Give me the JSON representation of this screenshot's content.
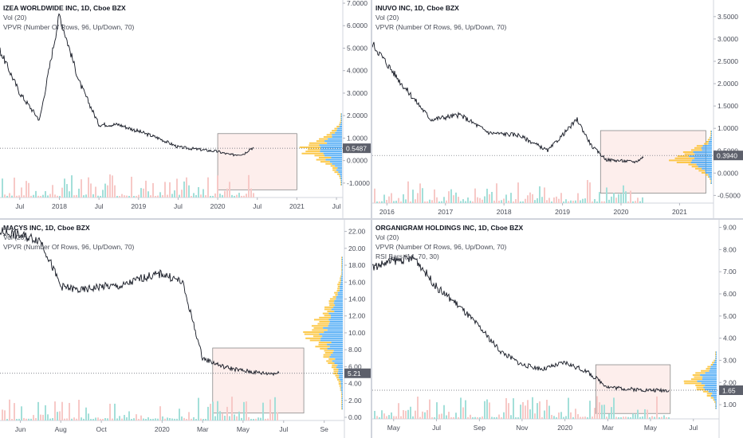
{
  "colors": {
    "price_line": "#131722",
    "vol_up": "#a3dfd9",
    "vol_down": "#f7c9c7",
    "vp_up": "#42a5f5",
    "vp_down": "#fbc02d",
    "box_fill": "#fce8e6",
    "box_stroke": "#8a8a8a",
    "badge": "#5d606b",
    "axis_text": "#4a4e59"
  },
  "panels": [
    {
      "title": "IZEA WORLDWIDE INC, 1D, Cboe BZX",
      "indicators": [
        "Vol (20)",
        "VPVR (Number Of Rows, 96, Up/Down, 70)"
      ],
      "price_label": "0.5487",
      "y_ticks": [
        "7.0000",
        "6.0000",
        "5.0000",
        "4.0000",
        "3.0000",
        "2.0000",
        "1.0000",
        "0.0000",
        "-1.0000"
      ],
      "x_ticks": [
        "Jul",
        "2018",
        "Jul",
        "2019",
        "Jul",
        "2020",
        "Jul",
        "2021",
        "Jul"
      ]
    },
    {
      "title": "INUVO INC, 1D, Cboe BZX",
      "indicators": [
        "Vol (20)",
        "VPVR (Number Of Rows, 96, Up/Down, 70)"
      ],
      "price_label": "0.3940",
      "y_ticks": [
        "3.5000",
        "3.0000",
        "2.5000",
        "2.0000",
        "1.5000",
        "1.0000",
        "0.5000",
        "0.0000",
        "-0.5000"
      ],
      "x_ticks": [
        "2016",
        "2017",
        "2018",
        "2019",
        "2020",
        "2021"
      ]
    },
    {
      "title": "MACYS INC, 1D, Cboe BZX",
      "indicators": [
        "Vol (20)",
        "VPVR (Number Of Rows, 96, Up/Down, 70)"
      ],
      "price_label": "5.21",
      "y_ticks": [
        "22.00",
        "20.00",
        "18.00",
        "16.00",
        "14.00",
        "12.00",
        "10.00",
        "8.00",
        "6.00",
        "4.00",
        "2.00",
        "0.00"
      ],
      "x_ticks": [
        "Jun",
        "Aug",
        "Oct",
        "2020",
        "Mar",
        "May",
        "Jul",
        "Se"
      ]
    },
    {
      "title": "ORGANIGRAM HOLDINGS INC, 1D, Cboe BZX",
      "indicators": [
        "Vol (20)",
        "VPVR (Number Of Rows, 96, Up/Down, 70)",
        "RSI Bars (14, 70, 30)"
      ],
      "price_label": "1.65",
      "y_ticks": [
        "9.00",
        "8.00",
        "7.00",
        "6.00",
        "5.00",
        "4.00",
        "3.00",
        "2.00",
        "1.00"
      ],
      "x_ticks": [
        "May",
        "Jul",
        "Sep",
        "Nov",
        "2020",
        "Mar",
        "May",
        "Jul"
      ]
    }
  ],
  "chart_data": [
    {
      "type": "line",
      "title": "IZEA WORLDWIDE INC, 1D, Cboe BZX",
      "x": [
        "2017-04",
        "2017-07",
        "2017-10",
        "2018-01",
        "2018-04",
        "2018-07",
        "2018-10",
        "2019-01",
        "2019-04",
        "2019-07",
        "2019-10",
        "2020-01",
        "2020-03",
        "2020-05",
        "2020-06"
      ],
      "series": [
        {
          "name": "IZEA WORLDWIDE INC",
          "values": [
            4.9,
            3.0,
            1.8,
            6.5,
            3.5,
            1.6,
            1.6,
            1.3,
            1.0,
            0.6,
            0.5,
            0.4,
            0.25,
            0.3,
            0.55
          ]
        }
      ],
      "ylim": [
        -1.5,
        7.0
      ],
      "last_price": 0.5487
    },
    {
      "type": "line",
      "title": "INUVO INC, 1D, Cboe BZX",
      "x": [
        "2015-10",
        "2016-04",
        "2016-10",
        "2017-04",
        "2017-10",
        "2018-04",
        "2018-10",
        "2019-04",
        "2019-07",
        "2019-10",
        "2020-04",
        "2020-06"
      ],
      "series": [
        {
          "name": "INUVO INC",
          "values": [
            2.9,
            2.0,
            1.2,
            1.3,
            0.9,
            0.85,
            0.5,
            1.2,
            0.6,
            0.3,
            0.25,
            0.39
          ]
        }
      ],
      "ylim": [
        -0.6,
        3.8
      ],
      "last_price": 0.394
    },
    {
      "type": "line",
      "title": "MACYS INC, 1D, Cboe BZX",
      "x": [
        "2019-05",
        "2019-06",
        "2019-07",
        "2019-08",
        "2019-09",
        "2019-10",
        "2019-11",
        "2019-12",
        "2020-01",
        "2020-02",
        "2020-03",
        "2020-04",
        "2020-05",
        "2020-06"
      ],
      "series": [
        {
          "name": "MACYS INC",
          "values": [
            22.0,
            21.5,
            21.0,
            15.5,
            15.0,
            15.5,
            15.5,
            16.5,
            17.0,
            16.0,
            7.0,
            6.0,
            5.5,
            5.21
          ]
        }
      ],
      "ylim": [
        0,
        23
      ],
      "last_price": 5.21
    },
    {
      "type": "line",
      "title": "ORGANIGRAM HOLDINGS INC, 1D, Cboe BZX",
      "x": [
        "2019-04",
        "2019-05",
        "2019-06",
        "2019-07",
        "2019-08",
        "2019-09",
        "2019-10",
        "2019-11",
        "2019-12",
        "2020-01",
        "2020-02",
        "2020-03",
        "2020-04",
        "2020-05"
      ],
      "series": [
        {
          "name": "ORGANIGRAM HOLDINGS INC",
          "values": [
            7.2,
            7.5,
            7.6,
            6.3,
            5.5,
            4.5,
            3.4,
            2.8,
            2.6,
            2.9,
            2.5,
            1.8,
            1.7,
            1.65
          ]
        }
      ],
      "ylim": [
        0.5,
        9.2
      ],
      "last_price": 1.65
    }
  ]
}
